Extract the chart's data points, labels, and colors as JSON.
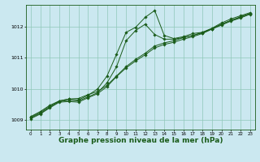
{
  "background_color": "#cbe8f0",
  "grid_color": "#90c8b8",
  "line_color": "#1a5c1a",
  "marker_color": "#1a5c1a",
  "xlabel": "Graphe pression niveau de la mer (hPa)",
  "xlabel_fontsize": 6.5,
  "xlim": [
    -0.5,
    23.5
  ],
  "ylim": [
    1008.7,
    1012.7
  ],
  "yticks": [
    1009,
    1010,
    1011,
    1012
  ],
  "xticks": [
    0,
    1,
    2,
    3,
    4,
    5,
    6,
    7,
    8,
    9,
    10,
    11,
    12,
    13,
    14,
    15,
    16,
    17,
    18,
    19,
    20,
    21,
    22,
    23
  ],
  "line1_x": [
    0,
    1,
    2,
    3,
    4,
    5,
    6,
    7,
    8,
    9,
    10,
    11,
    12,
    13,
    14,
    15,
    16,
    17,
    18,
    19,
    20,
    21,
    22,
    23
  ],
  "line1_y": [
    1009.1,
    1009.25,
    1009.45,
    1009.62,
    1009.68,
    1009.7,
    1009.82,
    1009.92,
    1010.12,
    1010.42,
    1010.72,
    1010.95,
    1011.15,
    1011.38,
    1011.48,
    1011.55,
    1011.65,
    1011.72,
    1011.82,
    1011.93,
    1012.08,
    1012.2,
    1012.32,
    1012.42
  ],
  "line2_x": [
    0,
    1,
    2,
    3,
    4,
    5,
    6,
    7,
    8,
    9,
    10,
    11,
    12,
    13,
    14,
    15,
    16,
    17,
    18,
    19,
    20,
    21,
    22,
    23
  ],
  "line2_y": [
    1009.08,
    1009.22,
    1009.42,
    1009.6,
    1009.64,
    1009.62,
    1009.75,
    1009.88,
    1010.2,
    1010.72,
    1011.55,
    1011.88,
    1012.08,
    1011.75,
    1011.6,
    1011.6,
    1011.65,
    1011.72,
    1011.8,
    1011.93,
    1012.08,
    1012.2,
    1012.3,
    1012.42
  ],
  "line3_x": [
    0,
    1,
    2,
    3,
    4,
    5,
    6,
    7,
    8,
    9,
    10,
    11,
    12,
    13,
    14,
    15,
    16,
    17,
    18,
    19,
    20,
    21,
    22,
    23
  ],
  "line3_y": [
    1009.12,
    1009.28,
    1009.48,
    1009.62,
    1009.68,
    1009.65,
    1009.8,
    1010.0,
    1010.42,
    1011.12,
    1011.82,
    1011.98,
    1012.3,
    1012.52,
    1011.72,
    1011.62,
    1011.68,
    1011.78,
    1011.82,
    1011.95,
    1012.12,
    1012.25,
    1012.35,
    1012.45
  ],
  "line4_x": [
    0,
    1,
    2,
    3,
    4,
    5,
    6,
    7,
    8,
    9,
    10,
    11,
    12,
    13,
    14,
    15,
    16,
    17,
    18,
    19,
    20,
    21,
    22,
    23
  ],
  "line4_y": [
    1009.05,
    1009.2,
    1009.4,
    1009.58,
    1009.6,
    1009.58,
    1009.72,
    1009.85,
    1010.08,
    1010.4,
    1010.68,
    1010.9,
    1011.1,
    1011.32,
    1011.43,
    1011.5,
    1011.6,
    1011.68,
    1011.78,
    1011.92,
    1012.05,
    1012.18,
    1012.28,
    1012.4
  ]
}
